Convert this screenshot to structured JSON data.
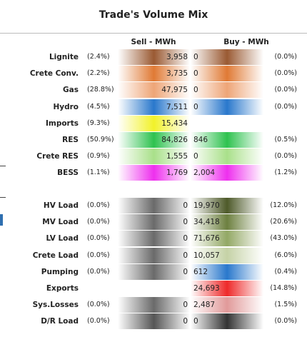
{
  "header": {
    "title": "Trade's Volume Mix",
    "sell": "Sell - MWh",
    "buy": "Buy - MWh"
  },
  "table": {
    "rows": [
      {
        "label": "Lignite",
        "sell_share": "(2.4%)",
        "sell": "3,958",
        "buy": "0",
        "buy_share": "(0.0%)"
      },
      {
        "label": "Crete Conv.",
        "sell_share": "(2.2%)",
        "sell": "3,735",
        "buy": "0",
        "buy_share": "(0.0%)"
      },
      {
        "label": "Gas",
        "sell_share": "(28.8%)",
        "sell": "47,975",
        "buy": "0",
        "buy_share": "(0.0%)"
      },
      {
        "label": "Hydro",
        "sell_share": "(4.5%)",
        "sell": "7,511",
        "buy": "0",
        "buy_share": "(0.0%)"
      },
      {
        "label": "Imports",
        "sell_share": "(9.3%)",
        "sell": "15,434",
        "buy": null,
        "buy_share": null
      },
      {
        "label": "RES",
        "sell_share": "(50.9%)",
        "sell": "84,826",
        "buy": "846",
        "buy_share": "(0.5%)"
      },
      {
        "label": "Crete RES",
        "sell_share": "(0.9%)",
        "sell": "1,555",
        "buy": "0",
        "buy_share": "(0.0%)"
      },
      {
        "label": "BESS",
        "sell_share": "(1.1%)",
        "sell": "1,769",
        "buy": "2,004",
        "buy_share": "(1.2%)"
      },
      {
        "label": "HV Load",
        "sell_share": "(0.0%)",
        "sell": "0",
        "buy": "19,970",
        "buy_share": "(12.0%)"
      },
      {
        "label": "MV Load",
        "sell_share": "(0.0%)",
        "sell": "0",
        "buy": "34,418",
        "buy_share": "(20.6%)"
      },
      {
        "label": "LV Load",
        "sell_share": "(0.0%)",
        "sell": "0",
        "buy": "71,676",
        "buy_share": "(43.0%)"
      },
      {
        "label": "Crete Load",
        "sell_share": "(0.0%)",
        "sell": "0",
        "buy": "10,057",
        "buy_share": "(6.0%)"
      },
      {
        "label": "Pumping",
        "sell_share": "(0.0%)",
        "sell": "0",
        "buy": "612",
        "buy_share": "(0.4%)"
      },
      {
        "label": "Exports",
        "sell_share": null,
        "sell": null,
        "buy": "24,693",
        "buy_share": "(14.8%)"
      },
      {
        "label": "Sys.Losses",
        "sell_share": "(0.0%)",
        "sell": "0",
        "buy": "2,487",
        "buy_share": "(1.5%)"
      },
      {
        "label": "D/R Load",
        "sell_share": "(0.0%)",
        "sell": "0",
        "buy": "0",
        "buy_share": "(0.0%)"
      }
    ]
  }
}
